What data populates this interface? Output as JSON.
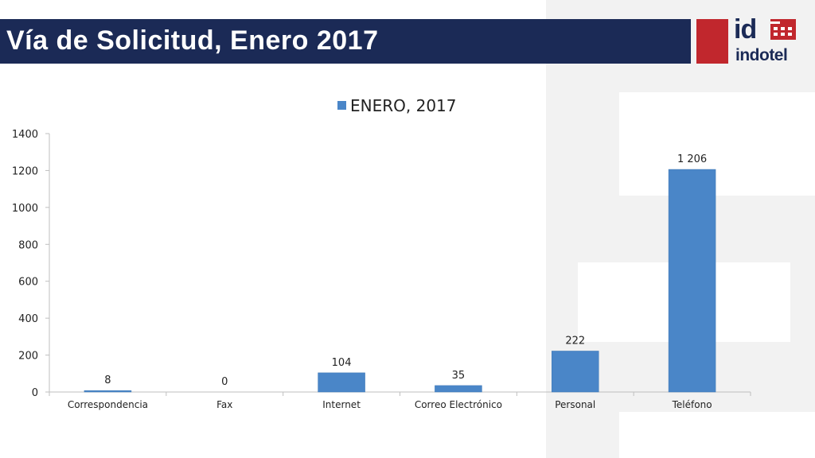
{
  "header": {
    "title": "Vía de Solicitud, Enero 2017",
    "logo_mark": "id",
    "logo_word": "indotel"
  },
  "colors": {
    "title_bar": "#1b2a56",
    "accent_red": "#c1272d",
    "bar": "#4a86c8"
  },
  "chart_data": {
    "type": "bar",
    "title": "",
    "xlabel": "",
    "ylabel": "",
    "legend_position": "top",
    "series": [
      {
        "name": "ENERO, 2017",
        "values": [
          8,
          0,
          104,
          35,
          222,
          1206
        ]
      }
    ],
    "categories": [
      "Correspondencia",
      "Fax",
      "Internet",
      "Correo Electrónico",
      "Personal",
      "Teléfono"
    ],
    "data_labels": [
      "8",
      "0",
      "104",
      "35",
      "222",
      "1 206"
    ],
    "ylim": [
      0,
      1400
    ],
    "yticks": [
      0,
      200,
      400,
      600,
      800,
      1000,
      1200,
      1400
    ],
    "grid": false
  }
}
